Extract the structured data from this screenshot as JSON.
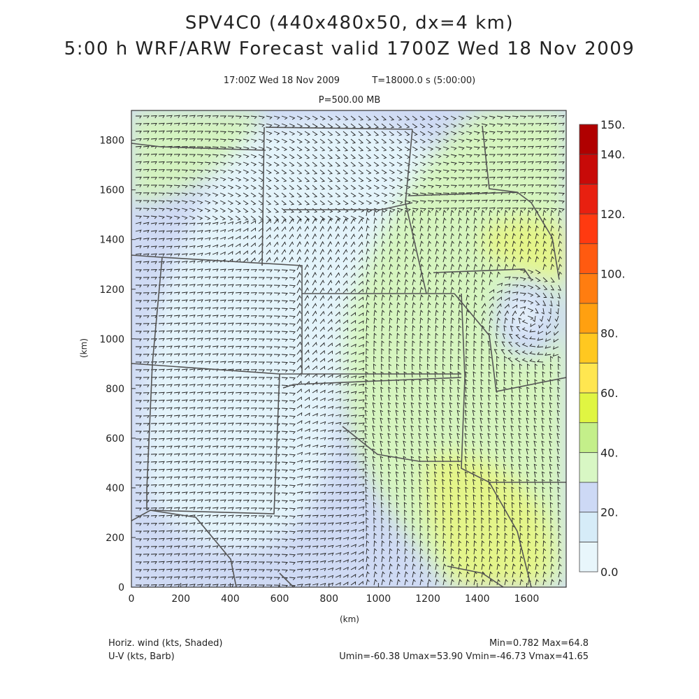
{
  "header": {
    "title_line1": "SPV4C0 (440x480x50, dx=4 km)",
    "title_line2": "5:00 h  WRF/ARW Forecast valid 1700Z Wed 18 Nov 2009",
    "valid_time": "17:00Z Wed 18 Nov 2009",
    "forecast_time": "T=18000.0 s (5:00:00)",
    "level": "P=500.00 MB"
  },
  "axes": {
    "x_label": "(km)",
    "y_label": "(km)",
    "x_ticks": [
      "0",
      "200",
      "400",
      "600",
      "800",
      "1000",
      "1200",
      "1400",
      "1600"
    ],
    "y_ticks": [
      "0",
      "200",
      "400",
      "600",
      "800",
      "1000",
      "1200",
      "1400",
      "1600",
      "1800"
    ],
    "x_range": [
      0,
      1760
    ],
    "y_range": [
      0,
      1920
    ]
  },
  "colorbar": {
    "labels": [
      "0.0",
      "20.",
      "40.",
      "60.",
      "80.",
      "100.",
      "120.",
      "140.",
      "150."
    ],
    "levels": [
      0,
      10,
      20,
      30,
      40,
      50,
      60,
      70,
      80,
      90,
      100,
      110,
      120,
      130,
      140,
      150
    ],
    "colors": [
      "#e8f6fb",
      "#d6ecf8",
      "#cdd9f5",
      "#d8f7c4",
      "#c4ef8a",
      "#e0f542",
      "#ffe650",
      "#ffc820",
      "#ffa010",
      "#ff7d10",
      "#ff5a10",
      "#ff3a10",
      "#e82010",
      "#c80a08",
      "#b00000"
    ]
  },
  "footer": {
    "left_line1": "Horiz. wind (kts, Shaded)",
    "left_line2": "U-V (kts, Barb)",
    "right_line1": "Min=0.782  Max=64.8",
    "right_line2": "Umin=-60.38  Umax=53.90  Vmin=-46.73  Vmax=41.65"
  },
  "map": {
    "field": "500 mb horizontal wind speed",
    "features": [
      "state boundaries",
      "wind barbs"
    ]
  }
}
